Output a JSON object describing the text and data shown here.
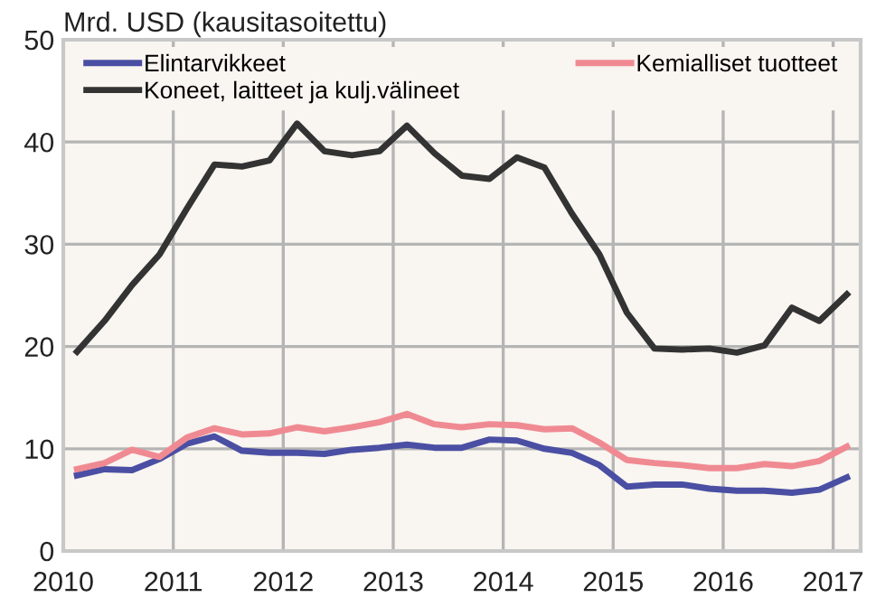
{
  "chart_data": {
    "type": "line",
    "ylabel": "Mrd. USD (kausitasoitettu)",
    "x": [
      2010.125,
      2010.375,
      2010.625,
      2010.875,
      2011.125,
      2011.375,
      2011.625,
      2011.875,
      2012.125,
      2012.375,
      2012.625,
      2012.875,
      2013.125,
      2013.375,
      2013.625,
      2013.875,
      2014.125,
      2014.375,
      2014.625,
      2014.875,
      2015.125,
      2015.375,
      2015.625,
      2015.875,
      2016.125,
      2016.375,
      2016.625,
      2016.875,
      2017.125
    ],
    "series": [
      {
        "name": "Elintarvikkeet",
        "color": "#4a4fa3",
        "values": [
          7.4,
          8.0,
          7.9,
          9.0,
          10.5,
          11.2,
          9.8,
          9.6,
          9.6,
          9.5,
          9.9,
          10.1,
          10.4,
          10.1,
          10.1,
          10.9,
          10.8,
          10.0,
          9.6,
          8.4,
          6.3,
          6.5,
          6.5,
          6.1,
          5.9,
          5.9,
          5.7,
          6.0,
          7.2
        ]
      },
      {
        "name": "Kemialliset tuotteet",
        "color": "#f08a92",
        "values": [
          8.0,
          8.6,
          9.9,
          9.2,
          11.1,
          12.0,
          11.4,
          11.5,
          12.1,
          11.7,
          12.1,
          12.6,
          13.4,
          12.4,
          12.1,
          12.4,
          12.3,
          11.9,
          12.0,
          10.6,
          8.9,
          8.6,
          8.4,
          8.1,
          8.1,
          8.5,
          8.3,
          8.8,
          10.2
        ]
      },
      {
        "name": "Koneet, laitteet ja kulj.välineet",
        "color": "#333333",
        "values": [
          19.5,
          22.5,
          26.0,
          29.0,
          33.5,
          37.8,
          37.6,
          38.2,
          41.8,
          39.1,
          38.7,
          39.1,
          41.6,
          38.9,
          36.7,
          36.4,
          38.5,
          37.5,
          33.0,
          29.0,
          23.3,
          19.8,
          19.7,
          19.8,
          19.4,
          20.1,
          23.8,
          22.5,
          25.1
        ]
      }
    ],
    "xlim": [
      2010,
      2017.25
    ],
    "xticks": [
      2010,
      2011,
      2012,
      2013,
      2014,
      2015,
      2016,
      2017
    ],
    "ylim": [
      0,
      50
    ],
    "yticks": [
      0,
      10,
      20,
      30,
      40,
      50
    ],
    "grid": true,
    "legend": "top",
    "marker": "none",
    "line_style": "solid"
  }
}
